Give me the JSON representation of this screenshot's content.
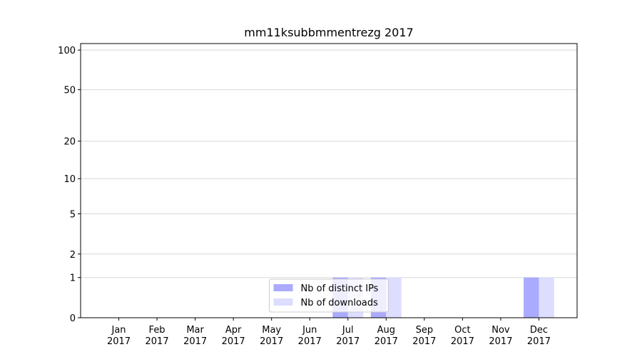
{
  "chart_data": {
    "type": "bar",
    "title": "mm11ksubbmmentrezg 2017",
    "categories": [
      [
        "Jan",
        "2017"
      ],
      [
        "Feb",
        "2017"
      ],
      [
        "Mar",
        "2017"
      ],
      [
        "Apr",
        "2017"
      ],
      [
        "May",
        "2017"
      ],
      [
        "Jun",
        "2017"
      ],
      [
        "Jul",
        "2017"
      ],
      [
        "Aug",
        "2017"
      ],
      [
        "Sep",
        "2017"
      ],
      [
        "Oct",
        "2017"
      ],
      [
        "Nov",
        "2017"
      ],
      [
        "Dec",
        "2017"
      ]
    ],
    "series": [
      {
        "name": "Nb of distinct IPs",
        "color": "#aaaaff",
        "values": [
          0,
          0,
          0,
          0,
          0,
          0,
          1,
          1,
          0,
          0,
          0,
          1
        ]
      },
      {
        "name": "Nb of downloads",
        "color": "#ddddff",
        "values": [
          0,
          0,
          0,
          0,
          0,
          0,
          1,
          1,
          0,
          0,
          0,
          1
        ]
      }
    ],
    "yscale": "log1p",
    "ylim": [
      0,
      112
    ],
    "yticks": [
      0,
      1,
      2,
      5,
      10,
      20,
      50,
      100
    ],
    "grid": true,
    "legend": "lower center"
  }
}
